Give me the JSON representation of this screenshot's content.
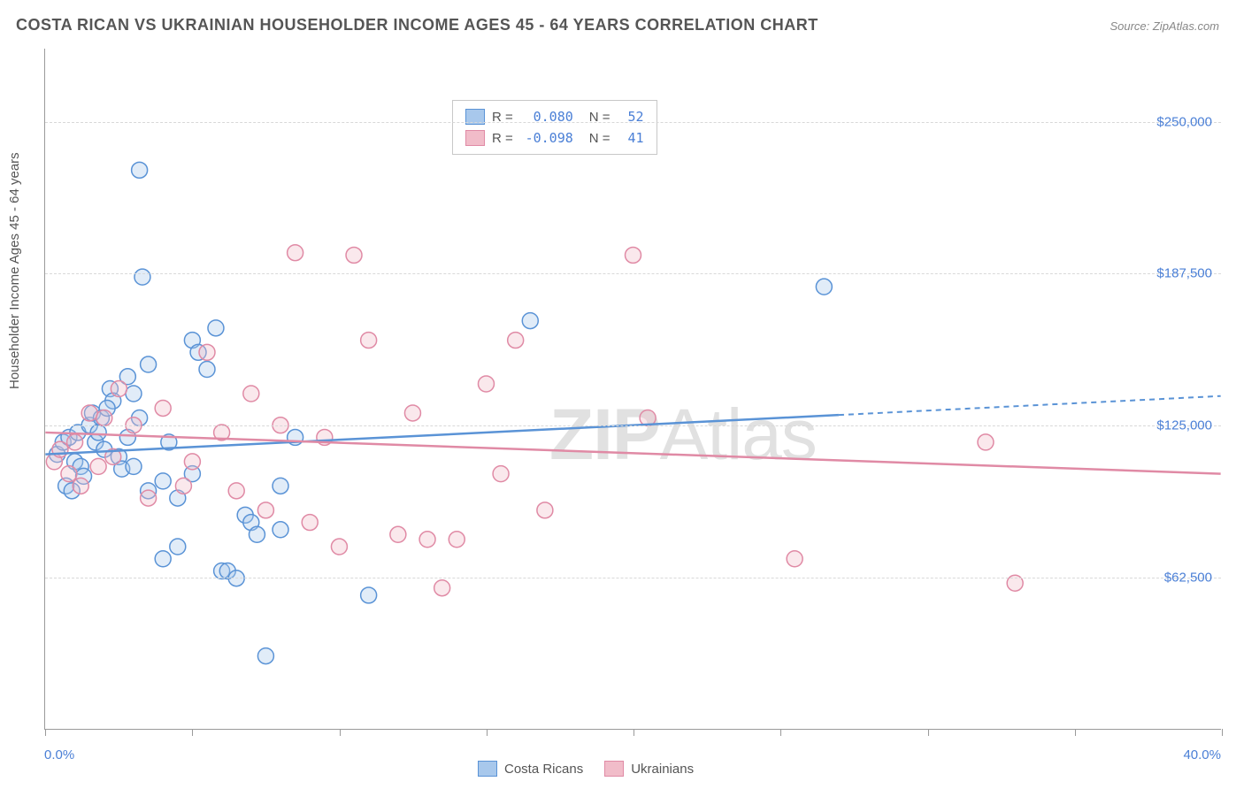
{
  "title": "COSTA RICAN VS UKRAINIAN HOUSEHOLDER INCOME AGES 45 - 64 YEARS CORRELATION CHART",
  "source": "Source: ZipAtlas.com",
  "watermark": {
    "bold": "ZIP",
    "rest": "Atlas"
  },
  "chart": {
    "type": "scatter",
    "xlim": [
      0,
      40
    ],
    "ylim": [
      0,
      280000
    ],
    "x_label_min": "0.0%",
    "x_label_max": "40.0%",
    "y_label": "Householder Income Ages 45 - 64 years",
    "y_ticks": [
      62500,
      125000,
      187500,
      250000
    ],
    "y_tick_labels": [
      "$62,500",
      "$125,000",
      "$187,500",
      "$250,000"
    ],
    "x_ticks": [
      0,
      5,
      10,
      15,
      20,
      25,
      30,
      35,
      40
    ],
    "background_color": "#ffffff",
    "grid_color": "#d8d8d8",
    "axis_color": "#9a9a9a",
    "tick_label_color": "#4a7fd6",
    "axis_label_color": "#555555",
    "title_color": "#555555",
    "title_fontsize": 18,
    "label_fontsize": 15,
    "marker_radius": 9,
    "marker_stroke_width": 1.5,
    "marker_fill_opacity": 0.35,
    "trendline_width": 2.5,
    "series": [
      {
        "name": "Costa Ricans",
        "color_stroke": "#5a93d6",
        "color_fill": "#a8c8ec",
        "r": "0.080",
        "n": "52",
        "trendline": {
          "x1": 0,
          "y1": 113000,
          "x2": 40,
          "y2": 137000,
          "solid_until_x": 27
        },
        "points": [
          [
            0.4,
            113000
          ],
          [
            0.6,
            118000
          ],
          [
            0.8,
            120000
          ],
          [
            1.0,
            110000
          ],
          [
            1.1,
            122000
          ],
          [
            1.2,
            108000
          ],
          [
            1.3,
            104000
          ],
          [
            0.7,
            100000
          ],
          [
            0.9,
            98000
          ],
          [
            1.5,
            125000
          ],
          [
            1.6,
            130000
          ],
          [
            1.7,
            118000
          ],
          [
            1.8,
            122000
          ],
          [
            2.0,
            115000
          ],
          [
            2.2,
            140000
          ],
          [
            2.3,
            135000
          ],
          [
            2.5,
            112000
          ],
          [
            2.6,
            107000
          ],
          [
            2.8,
            145000
          ],
          [
            3.0,
            138000
          ],
          [
            3.2,
            128000
          ],
          [
            3.5,
            150000
          ],
          [
            3.2,
            230000
          ],
          [
            3.3,
            186000
          ],
          [
            3.0,
            108000
          ],
          [
            3.5,
            98000
          ],
          [
            4.0,
            102000
          ],
          [
            4.2,
            118000
          ],
          [
            4.5,
            95000
          ],
          [
            5.0,
            160000
          ],
          [
            5.2,
            155000
          ],
          [
            5.5,
            148000
          ],
          [
            5.8,
            165000
          ],
          [
            6.0,
            65000
          ],
          [
            6.2,
            65000
          ],
          [
            6.5,
            62000
          ],
          [
            6.8,
            88000
          ],
          [
            7.0,
            85000
          ],
          [
            7.2,
            80000
          ],
          [
            7.5,
            30000
          ],
          [
            8.0,
            82000
          ],
          [
            8.5,
            120000
          ],
          [
            8.0,
            100000
          ],
          [
            4.0,
            70000
          ],
          [
            4.5,
            75000
          ],
          [
            11.0,
            55000
          ],
          [
            2.8,
            120000
          ],
          [
            1.9,
            128000
          ],
          [
            2.1,
            132000
          ],
          [
            16.5,
            168000
          ],
          [
            26.5,
            182000
          ],
          [
            5.0,
            105000
          ]
        ]
      },
      {
        "name": "Ukrainians",
        "color_stroke": "#e08aa5",
        "color_fill": "#f1bcc9",
        "r": "-0.098",
        "n": "41",
        "trendline": {
          "x1": 0,
          "y1": 122000,
          "x2": 40,
          "y2": 105000,
          "solid_until_x": 40
        },
        "points": [
          [
            0.3,
            110000
          ],
          [
            0.5,
            115000
          ],
          [
            0.8,
            105000
          ],
          [
            1.0,
            118000
          ],
          [
            1.2,
            100000
          ],
          [
            1.5,
            130000
          ],
          [
            1.8,
            108000
          ],
          [
            2.0,
            128000
          ],
          [
            2.3,
            112000
          ],
          [
            2.5,
            140000
          ],
          [
            3.0,
            125000
          ],
          [
            3.5,
            95000
          ],
          [
            4.0,
            132000
          ],
          [
            4.7,
            100000
          ],
          [
            5.0,
            110000
          ],
          [
            5.5,
            155000
          ],
          [
            6.0,
            122000
          ],
          [
            6.5,
            98000
          ],
          [
            7.0,
            138000
          ],
          [
            7.5,
            90000
          ],
          [
            8.0,
            125000
          ],
          [
            8.5,
            196000
          ],
          [
            9.0,
            85000
          ],
          [
            9.5,
            120000
          ],
          [
            10.0,
            75000
          ],
          [
            10.5,
            195000
          ],
          [
            11.0,
            160000
          ],
          [
            12.0,
            80000
          ],
          [
            12.5,
            130000
          ],
          [
            13.0,
            78000
          ],
          [
            13.5,
            58000
          ],
          [
            14.0,
            78000
          ],
          [
            15.0,
            142000
          ],
          [
            15.5,
            105000
          ],
          [
            16.0,
            160000
          ],
          [
            17.0,
            90000
          ],
          [
            20.0,
            195000
          ],
          [
            20.5,
            128000
          ],
          [
            25.5,
            70000
          ],
          [
            32.0,
            118000
          ],
          [
            33.0,
            60000
          ]
        ]
      }
    ]
  },
  "legend_bottom": [
    {
      "swatch_stroke": "#5a93d6",
      "swatch_fill": "#a8c8ec",
      "label": "Costa Ricans"
    },
    {
      "swatch_stroke": "#e08aa5",
      "swatch_fill": "#f1bcc9",
      "label": "Ukrainians"
    }
  ]
}
